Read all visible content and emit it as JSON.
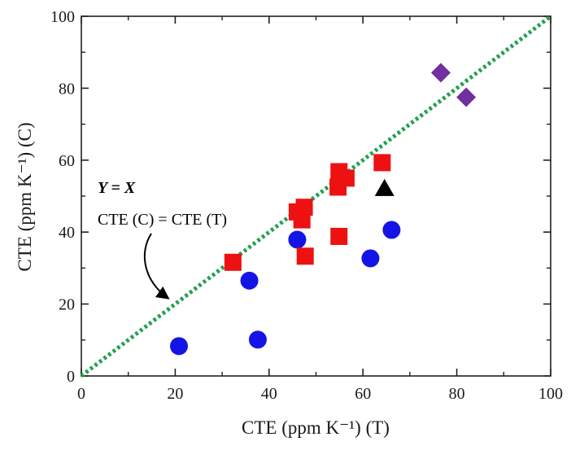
{
  "chart_data": {
    "type": "scatter",
    "title": "",
    "xlabel": "CTE (ppm K⁻¹) (T)",
    "ylabel": "CTE (ppm K⁻¹) (C)",
    "xlim": [
      0,
      100
    ],
    "ylim": [
      0,
      100
    ],
    "xticks": [
      0,
      20,
      40,
      60,
      80,
      100
    ],
    "yticks": [
      0,
      20,
      40,
      60,
      80,
      100
    ],
    "grid": false,
    "series": [
      {
        "name": "circles",
        "marker": "circle",
        "color": "#1414e6",
        "points": [
          {
            "x": 20.8,
            "y": 8.3
          },
          {
            "x": 35.8,
            "y": 26.5
          },
          {
            "x": 37.6,
            "y": 10.1
          },
          {
            "x": 46.0,
            "y": 37.9
          },
          {
            "x": 61.6,
            "y": 32.7
          },
          {
            "x": 66.1,
            "y": 40.6
          }
        ]
      },
      {
        "name": "squares",
        "marker": "square",
        "color": "#ee1111",
        "points": [
          {
            "x": 32.3,
            "y": 31.6
          },
          {
            "x": 46.0,
            "y": 45.6
          },
          {
            "x": 47.0,
            "y": 43.4
          },
          {
            "x": 47.5,
            "y": 46.9
          },
          {
            "x": 47.7,
            "y": 33.3
          },
          {
            "x": 54.7,
            "y": 52.5
          },
          {
            "x": 54.9,
            "y": 56.8
          },
          {
            "x": 54.9,
            "y": 38.8
          },
          {
            "x": 56.4,
            "y": 55.0
          },
          {
            "x": 64.1,
            "y": 59.3
          }
        ]
      },
      {
        "name": "triangle",
        "marker": "triangle",
        "color": "#000000",
        "points": [
          {
            "x": 64.6,
            "y": 52.3
          }
        ]
      },
      {
        "name": "diamonds",
        "marker": "diamond",
        "color": "#7030a0",
        "points": [
          {
            "x": 76.6,
            "y": 84.3
          },
          {
            "x": 82.0,
            "y": 77.5
          }
        ]
      }
    ],
    "reference_line": {
      "label": "Y = X",
      "from": [
        0,
        0
      ],
      "to": [
        100,
        100
      ],
      "color": "#21a04f",
      "style": "dotted"
    },
    "annotations": [
      {
        "text": "Y = X"
      },
      {
        "text": "CTE (C) = CTE (T)"
      }
    ]
  }
}
